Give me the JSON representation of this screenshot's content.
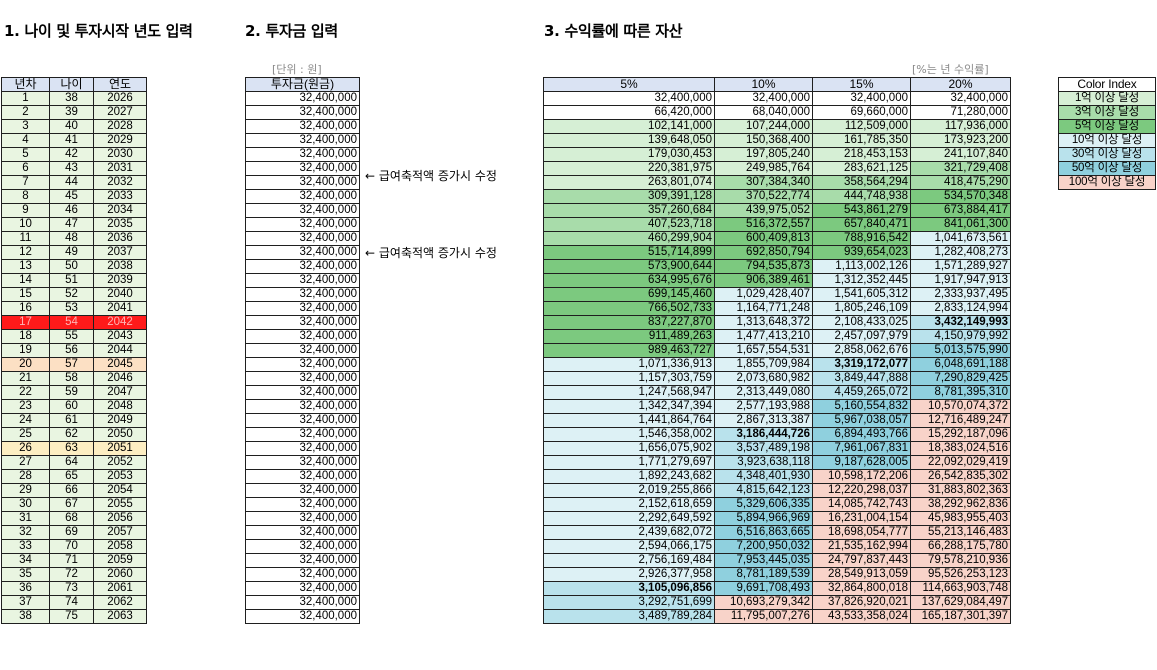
{
  "sections": {
    "s1": "1. 나이 및 투자시작 년도 입력",
    "s2": "2. 투자금 입력",
    "s3": "3. 수익률에 따른 자산"
  },
  "notes": {
    "unit": "[단위 : 원]",
    "rate": "[%는 년 수익률]"
  },
  "left_headers": [
    "년차",
    "나이",
    "연도"
  ],
  "invest_header": "투자금(원금)",
  "rate_headers": [
    "5%",
    "10%",
    "15%",
    "20%"
  ],
  "arrow_note": "← 급여축적액 증가시 수정",
  "color_index": {
    "title": "Color Index",
    "items": [
      {
        "label": "1억 이상 달성",
        "color": "#d6efd5"
      },
      {
        "label": "3억 이상 달성",
        "color": "#a8dcaa"
      },
      {
        "label": "5억 이상 달성",
        "color": "#7cc97f"
      },
      {
        "label": "10억 이상 달성",
        "color": "#ddf1f5"
      },
      {
        "label": "30억 이상 달성",
        "color": "#b9e2ec"
      },
      {
        "label": "50억 이상 달성",
        "color": "#8fd0de"
      },
      {
        "label": "100억 이상 달성",
        "color": "#f8d3c9"
      }
    ]
  },
  "rows": [
    {
      "y": "1",
      "age": "38",
      "year": "2026",
      "inv": "32,400,000",
      "v": [
        "32,400,000",
        "32,400,000",
        "32,400,000",
        "32,400,000"
      ]
    },
    {
      "y": "2",
      "age": "39",
      "year": "2027",
      "inv": "32,400,000",
      "v": [
        "66,420,000",
        "68,040,000",
        "69,660,000",
        "71,280,000"
      ]
    },
    {
      "y": "3",
      "age": "40",
      "year": "2028",
      "inv": "32,400,000",
      "v": [
        "102,141,000",
        "107,244,000",
        "112,509,000",
        "117,936,000"
      ]
    },
    {
      "y": "4",
      "age": "41",
      "year": "2029",
      "inv": "32,400,000",
      "v": [
        "139,648,050",
        "150,368,400",
        "161,785,350",
        "173,923,200"
      ]
    },
    {
      "y": "5",
      "age": "42",
      "year": "2030",
      "inv": "32,400,000",
      "v": [
        "179,030,453",
        "197,805,240",
        "218,453,153",
        "241,107,840"
      ]
    },
    {
      "y": "6",
      "age": "43",
      "year": "2031",
      "inv": "32,400,000",
      "v": [
        "220,381,975",
        "249,985,764",
        "283,621,125",
        "321,729,408"
      ]
    },
    {
      "y": "7",
      "age": "44",
      "year": "2032",
      "inv": "32,400,000",
      "v": [
        "263,801,074",
        "307,384,340",
        "358,564,294",
        "418,475,290"
      ]
    },
    {
      "y": "8",
      "age": "45",
      "year": "2033",
      "inv": "32,400,000",
      "v": [
        "309,391,128",
        "370,522,774",
        "444,748,938",
        "534,570,348"
      ]
    },
    {
      "y": "9",
      "age": "46",
      "year": "2034",
      "inv": "32,400,000",
      "v": [
        "357,260,684",
        "439,975,052",
        "543,861,279",
        "673,884,417"
      ]
    },
    {
      "y": "10",
      "age": "47",
      "year": "2035",
      "inv": "32,400,000",
      "v": [
        "407,523,718",
        "516,372,557",
        "657,840,471",
        "841,061,300"
      ]
    },
    {
      "y": "11",
      "age": "48",
      "year": "2036",
      "inv": "32,400,000",
      "v": [
        "460,299,904",
        "600,409,813",
        "788,916,542",
        "1,041,673,561"
      ]
    },
    {
      "y": "12",
      "age": "49",
      "year": "2037",
      "inv": "32,400,000",
      "v": [
        "515,714,899",
        "692,850,794",
        "939,654,023",
        "1,282,408,273"
      ]
    },
    {
      "y": "13",
      "age": "50",
      "year": "2038",
      "inv": "32,400,000",
      "v": [
        "573,900,644",
        "794,535,873",
        "1,113,002,126",
        "1,571,289,927"
      ]
    },
    {
      "y": "14",
      "age": "51",
      "year": "2039",
      "inv": "32,400,000",
      "v": [
        "634,995,676",
        "906,389,461",
        "1,312,352,445",
        "1,917,947,913"
      ]
    },
    {
      "y": "15",
      "age": "52",
      "year": "2040",
      "inv": "32,400,000",
      "v": [
        "699,145,460",
        "1,029,428,407",
        "1,541,605,312",
        "2,333,937,495"
      ]
    },
    {
      "y": "16",
      "age": "53",
      "year": "2041",
      "inv": "32,400,000",
      "v": [
        "766,502,733",
        "1,164,771,248",
        "1,805,246,109",
        "2,833,124,994"
      ]
    },
    {
      "y": "17",
      "age": "54",
      "year": "2042",
      "inv": "32,400,000",
      "v": [
        "837,227,870",
        "1,313,648,372",
        "2,108,433,025",
        "3,432,149,993"
      ]
    },
    {
      "y": "18",
      "age": "55",
      "year": "2043",
      "inv": "32,400,000",
      "v": [
        "911,489,263",
        "1,477,413,210",
        "2,457,097,979",
        "4,150,979,992"
      ]
    },
    {
      "y": "19",
      "age": "56",
      "year": "2044",
      "inv": "32,400,000",
      "v": [
        "989,463,727",
        "1,657,554,531",
        "2,858,062,676",
        "5,013,575,990"
      ]
    },
    {
      "y": "20",
      "age": "57",
      "year": "2045",
      "inv": "32,400,000",
      "v": [
        "1,071,336,913",
        "1,855,709,984",
        "3,319,172,077",
        "6,048,691,188"
      ]
    },
    {
      "y": "21",
      "age": "58",
      "year": "2046",
      "inv": "32,400,000",
      "v": [
        "1,157,303,759",
        "2,073,680,982",
        "3,849,447,888",
        "7,290,829,425"
      ]
    },
    {
      "y": "22",
      "age": "59",
      "year": "2047",
      "inv": "32,400,000",
      "v": [
        "1,247,568,947",
        "2,313,449,080",
        "4,459,265,072",
        "8,781,395,310"
      ]
    },
    {
      "y": "23",
      "age": "60",
      "year": "2048",
      "inv": "32,400,000",
      "v": [
        "1,342,347,394",
        "2,577,193,988",
        "5,160,554,832",
        "10,570,074,372"
      ]
    },
    {
      "y": "24",
      "age": "61",
      "year": "2049",
      "inv": "32,400,000",
      "v": [
        "1,441,864,764",
        "2,867,313,387",
        "5,967,038,057",
        "12,716,489,247"
      ]
    },
    {
      "y": "25",
      "age": "62",
      "year": "2050",
      "inv": "32,400,000",
      "v": [
        "1,546,358,002",
        "3,186,444,726",
        "6,894,493,766",
        "15,292,187,096"
      ]
    },
    {
      "y": "26",
      "age": "63",
      "year": "2051",
      "inv": "32,400,000",
      "v": [
        "1,656,075,902",
        "3,537,489,198",
        "7,961,067,831",
        "18,383,024,516"
      ]
    },
    {
      "y": "27",
      "age": "64",
      "year": "2052",
      "inv": "32,400,000",
      "v": [
        "1,771,279,697",
        "3,923,638,118",
        "9,187,628,005",
        "22,092,029,419"
      ]
    },
    {
      "y": "28",
      "age": "65",
      "year": "2053",
      "inv": "32,400,000",
      "v": [
        "1,892,243,682",
        "4,348,401,930",
        "10,598,172,206",
        "26,542,835,302"
      ]
    },
    {
      "y": "29",
      "age": "66",
      "year": "2054",
      "inv": "32,400,000",
      "v": [
        "2,019,255,866",
        "4,815,642,123",
        "12,220,298,037",
        "31,883,802,363"
      ]
    },
    {
      "y": "30",
      "age": "67",
      "year": "2055",
      "inv": "32,400,000",
      "v": [
        "2,152,618,659",
        "5,329,606,335",
        "14,085,742,743",
        "38,292,962,836"
      ]
    },
    {
      "y": "31",
      "age": "68",
      "year": "2056",
      "inv": "32,400,000",
      "v": [
        "2,292,649,592",
        "5,894,966,969",
        "16,231,004,154",
        "45,983,955,403"
      ]
    },
    {
      "y": "32",
      "age": "69",
      "year": "2057",
      "inv": "32,400,000",
      "v": [
        "2,439,682,072",
        "6,516,863,665",
        "18,698,054,777",
        "55,213,146,483"
      ]
    },
    {
      "y": "33",
      "age": "70",
      "year": "2058",
      "inv": "32,400,000",
      "v": [
        "2,594,066,175",
        "7,200,950,032",
        "21,535,162,994",
        "66,288,175,780"
      ]
    },
    {
      "y": "34",
      "age": "71",
      "year": "2059",
      "inv": "32,400,000",
      "v": [
        "2,756,169,484",
        "7,953,445,035",
        "24,797,837,443",
        "79,578,210,936"
      ]
    },
    {
      "y": "35",
      "age": "72",
      "year": "2060",
      "inv": "32,400,000",
      "v": [
        "2,926,377,958",
        "8,781,189,539",
        "28,549,913,059",
        "95,526,253,123"
      ]
    },
    {
      "y": "36",
      "age": "73",
      "year": "2061",
      "inv": "32,400,000",
      "v": [
        "3,105,096,856",
        "9,691,708,493",
        "32,864,800,018",
        "114,663,903,748"
      ]
    },
    {
      "y": "37",
      "age": "74",
      "year": "2062",
      "inv": "32,400,000",
      "v": [
        "3,292,751,699",
        "10,693,279,342",
        "37,826,920,021",
        "137,629,084,497"
      ]
    },
    {
      "y": "38",
      "age": "75",
      "year": "2063",
      "inv": "32,400,000",
      "v": [
        "3,489,789,284",
        "11,795,007,276",
        "43,533,358,024",
        "165,187,301,397"
      ]
    }
  ]
}
